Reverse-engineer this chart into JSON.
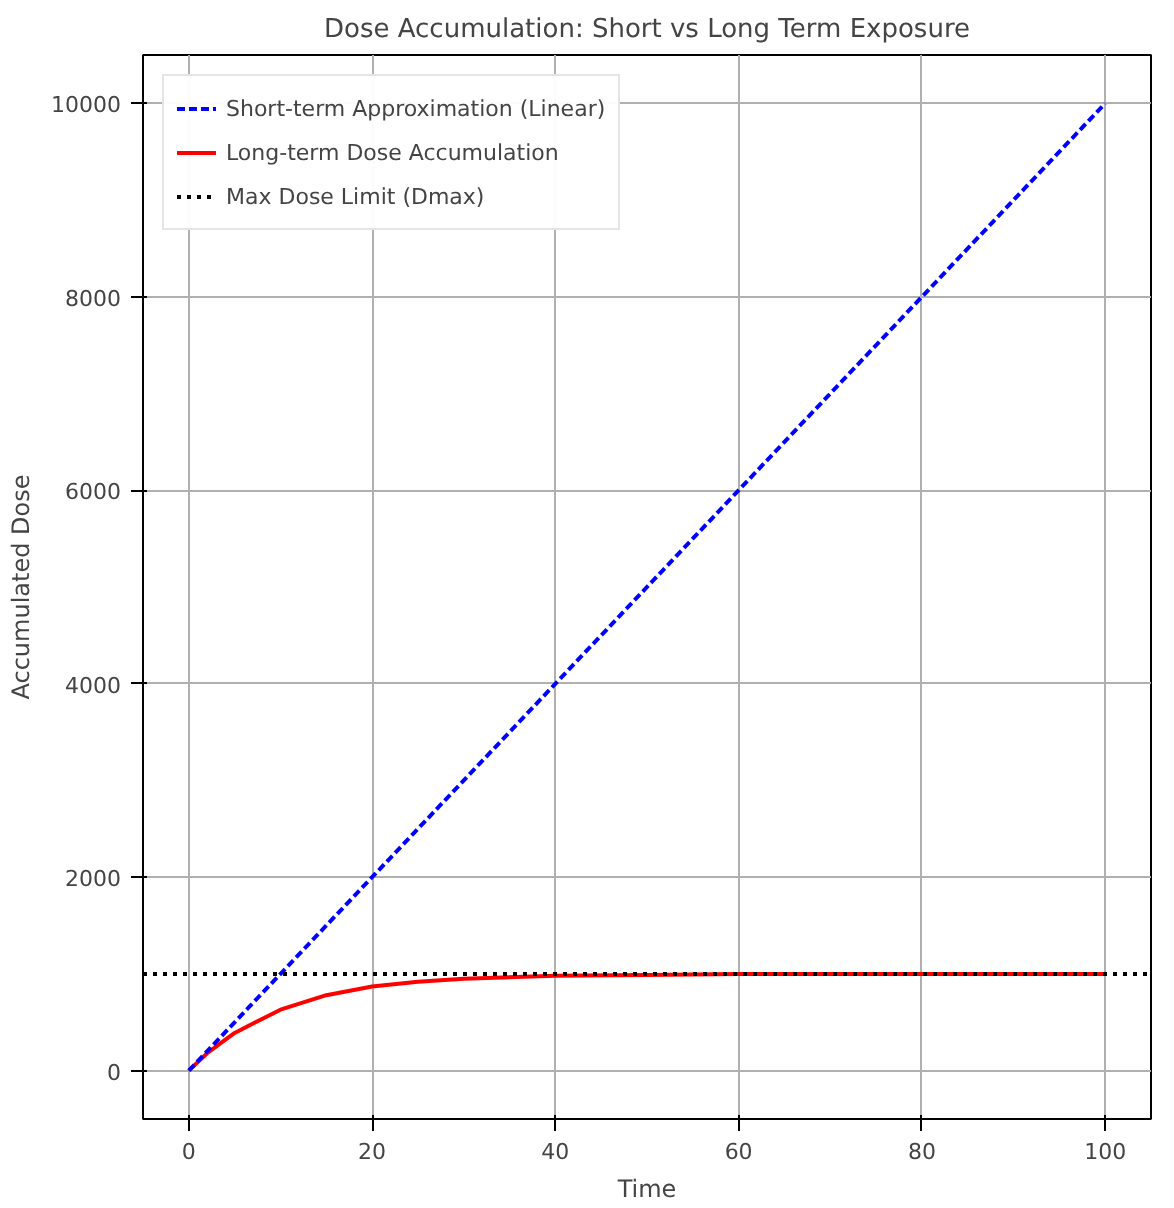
{
  "chart_data": {
    "type": "line",
    "title": "Dose Accumulation: Short vs Long Term Exposure",
    "xlabel": "Time",
    "ylabel": "Accumulated Dose",
    "series": [
      {
        "name": "Short-term Approximation (Linear)",
        "color": "#0000ff",
        "line_style": "dashed",
        "x": [
          0,
          100
        ],
        "values": [
          0,
          10000
        ]
      },
      {
        "name": "Long-term Dose Accumulation",
        "color": "#ff0000",
        "line_style": "solid",
        "x": [
          0,
          2,
          5,
          10,
          15,
          20,
          25,
          30,
          40,
          50,
          60,
          80,
          100
        ],
        "values": [
          0,
          180,
          390,
          630,
          780,
          870,
          920,
          950,
          980,
          990,
          1000,
          1000,
          1000
        ]
      }
    ],
    "ref_lines": [
      {
        "axis": "y",
        "value": 1000,
        "label": "Max Dose Limit (Dmax)",
        "color": "#000000",
        "line_style": "dotted"
      }
    ],
    "xlim": [
      -5,
      105
    ],
    "ylim": [
      -500,
      10500
    ],
    "xticks": [
      0,
      20,
      40,
      60,
      80,
      100
    ],
    "yticks": [
      0,
      2000,
      4000,
      6000,
      8000,
      10000
    ],
    "grid": true,
    "legend": "top left"
  }
}
